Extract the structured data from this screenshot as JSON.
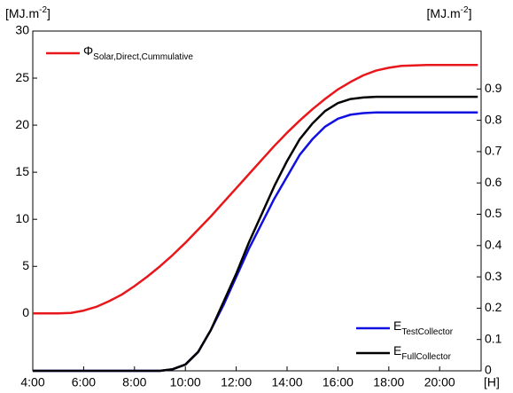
{
  "chart_data": {
    "type": "line",
    "ylabel": {
      "base": "[MJ.m",
      "sup": "-2",
      "end": "]"
    },
    "y2label": {
      "base": "[MJ.m",
      "sup": "-2",
      "end": "]"
    },
    "xlabel": "[H]",
    "x": [
      4,
      4.5,
      5,
      5.5,
      6,
      6.5,
      7,
      7.5,
      8,
      8.5,
      9,
      9.5,
      10,
      10.5,
      11,
      11.5,
      12,
      12.5,
      13,
      13.5,
      14,
      14.5,
      15,
      15.5,
      16,
      16.5,
      17,
      17.5,
      18,
      18.5,
      19,
      19.5,
      20,
      20.5,
      21,
      21.5
    ],
    "xlim": [
      4,
      21.63
    ],
    "xticks": [
      {
        "value": 4,
        "label": "4:00"
      },
      {
        "value": 6,
        "label": "6:00"
      },
      {
        "value": 8,
        "label": "8:00"
      },
      {
        "value": 10,
        "label": "10:00"
      },
      {
        "value": 12,
        "label": "12:00"
      },
      {
        "value": 14,
        "label": "14:00"
      },
      {
        "value": 16,
        "label": "16:00"
      },
      {
        "value": 18,
        "label": "18:00"
      },
      {
        "value": 20,
        "label": "20:00"
      }
    ],
    "ylim": [
      -6.1,
      30
    ],
    "yticks": [
      0,
      5,
      10,
      15,
      20,
      25,
      30
    ],
    "y2lim": [
      0,
      1.085
    ],
    "y2ticks": [
      0,
      0.1,
      0.2,
      0.3,
      0.4,
      0.5,
      0.6,
      0.7,
      0.8,
      0.9
    ],
    "grid": false,
    "series": [
      {
        "name": "Φ",
        "subscript": "Solar,Direct,Cummulative",
        "color": "#e8171c",
        "axis": "y",
        "values": [
          0,
          0,
          0,
          0.05,
          0.3,
          0.7,
          1.3,
          2.0,
          2.9,
          3.9,
          5.0,
          6.2,
          7.5,
          8.9,
          10.3,
          11.8,
          13.3,
          14.8,
          16.3,
          17.8,
          19.2,
          20.5,
          21.7,
          22.8,
          23.8,
          24.6,
          25.3,
          25.8,
          26.1,
          26.3,
          26.35,
          26.4,
          26.4,
          26.4,
          26.4,
          26.4
        ]
      },
      {
        "name": "E",
        "subscript": "TestCollector",
        "color": "#1010e0",
        "axis": "y2",
        "values": [
          0,
          0,
          0,
          0,
          0,
          0,
          0,
          0,
          0,
          0,
          0,
          0.005,
          0.02,
          0.06,
          0.13,
          0.21,
          0.3,
          0.39,
          0.47,
          0.55,
          0.62,
          0.69,
          0.74,
          0.78,
          0.805,
          0.818,
          0.823,
          0.825,
          0.825,
          0.825,
          0.825,
          0.825,
          0.825,
          0.825,
          0.825,
          0.825
        ]
      },
      {
        "name": "E",
        "subscript": "FullCollector",
        "color": "#000000",
        "axis": "y2",
        "values": [
          0,
          0,
          0,
          0,
          0,
          0,
          0,
          0,
          0,
          0,
          0,
          0.005,
          0.02,
          0.06,
          0.13,
          0.22,
          0.31,
          0.41,
          0.5,
          0.59,
          0.67,
          0.74,
          0.79,
          0.83,
          0.855,
          0.868,
          0.873,
          0.875,
          0.875,
          0.875,
          0.875,
          0.875,
          0.875,
          0.875,
          0.875,
          0.875
        ]
      }
    ]
  }
}
